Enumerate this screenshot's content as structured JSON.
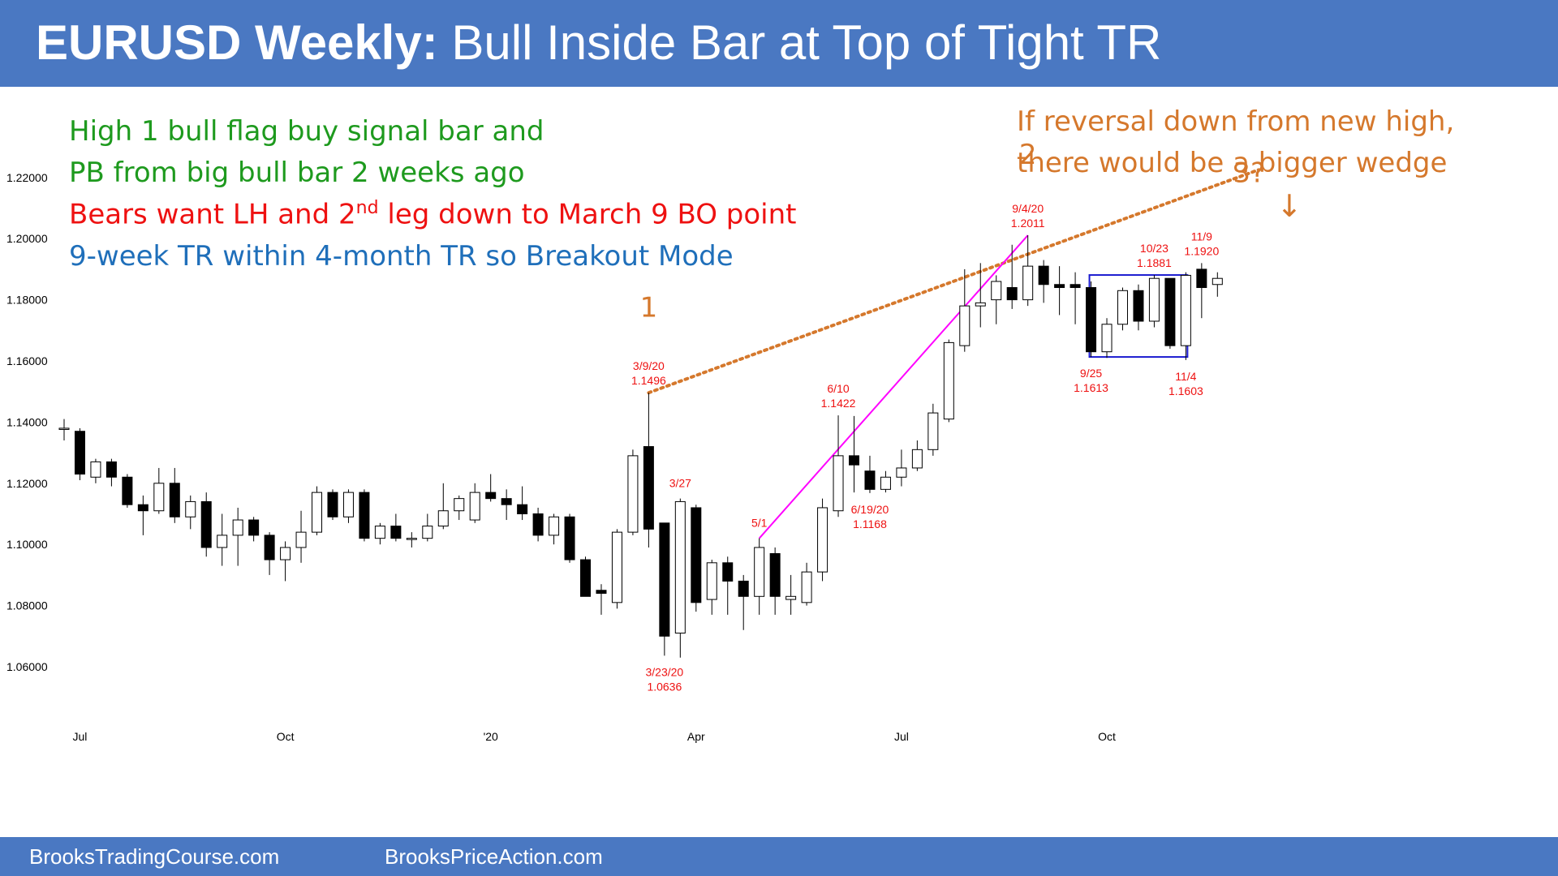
{
  "header": {
    "title_bold": "EURUSD Weekly:",
    "title_rest": " Bull Inside Bar at Top of Tight TR"
  },
  "footer": {
    "left": "BrooksTradingCourse.com",
    "right": "BrooksPriceAction.com"
  },
  "notes": {
    "line1": "High 1 bull flag buy signal bar and",
    "line2": "PB from big bull bar 2 weeks ago",
    "line3_a": "Bears want LH and 2",
    "line3_sup": "nd",
    "line3_b": " leg down to March 9 BO point",
    "line4": "9-week TR within 4-month TR so Breakout Mode",
    "reversal1": "If reversal down from new high,",
    "reversal2": "there would be a bigger wedge",
    "arrow": "↓"
  },
  "colors": {
    "header": "#4a78c2",
    "green": "#1e9a1e",
    "red": "#ee1111",
    "blue": "#1f6fba",
    "orange": "#d5782c",
    "magenta": "#ff00ff",
    "box": "#1a1ad0"
  },
  "chart_data": {
    "type": "candlestick",
    "ylim": [
      1.05,
      1.23
    ],
    "yticks": [
      1.06,
      1.08,
      1.1,
      1.12,
      1.14,
      1.16,
      1.18,
      1.2,
      1.22
    ],
    "ytick_labels": [
      "1.06000",
      "1.08000",
      "1.10000",
      "1.12000",
      "1.14000",
      "1.16000",
      "1.18000",
      "1.20000",
      "1.22000"
    ],
    "xticks": [
      {
        "index": 1,
        "label": "Jul"
      },
      {
        "index": 14,
        "label": "Oct"
      },
      {
        "index": 27,
        "label": "'20"
      },
      {
        "index": 40,
        "label": "Apr"
      },
      {
        "index": 53,
        "label": "Jul"
      },
      {
        "index": 66,
        "label": "Oct"
      }
    ],
    "candles": [
      {
        "o": 1.138,
        "h": 1.141,
        "l": 1.134,
        "c": 1.138
      },
      {
        "o": 1.137,
        "h": 1.138,
        "l": 1.121,
        "c": 1.123
      },
      {
        "o": 1.122,
        "h": 1.128,
        "l": 1.12,
        "c": 1.127
      },
      {
        "o": 1.127,
        "h": 1.128,
        "l": 1.119,
        "c": 1.122
      },
      {
        "o": 1.122,
        "h": 1.123,
        "l": 1.112,
        "c": 1.113
      },
      {
        "o": 1.113,
        "h": 1.116,
        "l": 1.103,
        "c": 1.111
      },
      {
        "o": 1.111,
        "h": 1.125,
        "l": 1.11,
        "c": 1.12
      },
      {
        "o": 1.12,
        "h": 1.125,
        "l": 1.107,
        "c": 1.109
      },
      {
        "o": 1.109,
        "h": 1.116,
        "l": 1.105,
        "c": 1.114
      },
      {
        "o": 1.114,
        "h": 1.117,
        "l": 1.096,
        "c": 1.099
      },
      {
        "o": 1.099,
        "h": 1.11,
        "l": 1.093,
        "c": 1.103
      },
      {
        "o": 1.103,
        "h": 1.112,
        "l": 1.093,
        "c": 1.108
      },
      {
        "o": 1.108,
        "h": 1.109,
        "l": 1.101,
        "c": 1.103
      },
      {
        "o": 1.103,
        "h": 1.104,
        "l": 1.09,
        "c": 1.095
      },
      {
        "o": 1.095,
        "h": 1.101,
        "l": 1.088,
        "c": 1.099
      },
      {
        "o": 1.099,
        "h": 1.111,
        "l": 1.094,
        "c": 1.104
      },
      {
        "o": 1.104,
        "h": 1.119,
        "l": 1.103,
        "c": 1.117
      },
      {
        "o": 1.117,
        "h": 1.118,
        "l": 1.108,
        "c": 1.109
      },
      {
        "o": 1.109,
        "h": 1.118,
        "l": 1.107,
        "c": 1.117
      },
      {
        "o": 1.117,
        "h": 1.118,
        "l": 1.101,
        "c": 1.102
      },
      {
        "o": 1.102,
        "h": 1.107,
        "l": 1.1,
        "c": 1.106
      },
      {
        "o": 1.106,
        "h": 1.11,
        "l": 1.101,
        "c": 1.102
      },
      {
        "o": 1.102,
        "h": 1.104,
        "l": 1.099,
        "c": 1.102
      },
      {
        "o": 1.102,
        "h": 1.11,
        "l": 1.101,
        "c": 1.106
      },
      {
        "o": 1.106,
        "h": 1.12,
        "l": 1.105,
        "c": 1.111
      },
      {
        "o": 1.111,
        "h": 1.116,
        "l": 1.108,
        "c": 1.115
      },
      {
        "o": 1.108,
        "h": 1.12,
        "l": 1.107,
        "c": 1.117
      },
      {
        "o": 1.117,
        "h": 1.123,
        "l": 1.114,
        "c": 1.115
      },
      {
        "o": 1.115,
        "h": 1.118,
        "l": 1.108,
        "c": 1.113
      },
      {
        "o": 1.113,
        "h": 1.119,
        "l": 1.108,
        "c": 1.11
      },
      {
        "o": 1.11,
        "h": 1.112,
        "l": 1.101,
        "c": 1.103
      },
      {
        "o": 1.103,
        "h": 1.11,
        "l": 1.1,
        "c": 1.109
      },
      {
        "o": 1.109,
        "h": 1.11,
        "l": 1.094,
        "c": 1.095
      },
      {
        "o": 1.095,
        "h": 1.096,
        "l": 1.083,
        "c": 1.083
      },
      {
        "o": 1.085,
        "h": 1.087,
        "l": 1.077,
        "c": 1.084
      },
      {
        "o": 1.081,
        "h": 1.105,
        "l": 1.079,
        "c": 1.104
      },
      {
        "o": 1.104,
        "h": 1.131,
        "l": 1.103,
        "c": 1.129
      },
      {
        "o": 1.132,
        "h": 1.1496,
        "l": 1.099,
        "c": 1.105
      },
      {
        "o": 1.107,
        "h": 1.107,
        "l": 1.0636,
        "c": 1.07
      },
      {
        "o": 1.071,
        "h": 1.115,
        "l": 1.063,
        "c": 1.114
      },
      {
        "o": 1.112,
        "h": 1.113,
        "l": 1.078,
        "c": 1.081
      },
      {
        "o": 1.082,
        "h": 1.095,
        "l": 1.077,
        "c": 1.094
      },
      {
        "o": 1.094,
        "h": 1.096,
        "l": 1.077,
        "c": 1.088
      },
      {
        "o": 1.088,
        "h": 1.09,
        "l": 1.072,
        "c": 1.083
      },
      {
        "o": 1.083,
        "h": 1.102,
        "l": 1.077,
        "c": 1.099
      },
      {
        "o": 1.097,
        "h": 1.099,
        "l": 1.077,
        "c": 1.083
      },
      {
        "o": 1.082,
        "h": 1.09,
        "l": 1.077,
        "c": 1.083
      },
      {
        "o": 1.081,
        "h": 1.094,
        "l": 1.08,
        "c": 1.091
      },
      {
        "o": 1.091,
        "h": 1.115,
        "l": 1.088,
        "c": 1.112
      },
      {
        "o": 1.111,
        "h": 1.1422,
        "l": 1.109,
        "c": 1.129
      },
      {
        "o": 1.129,
        "h": 1.142,
        "l": 1.117,
        "c": 1.126
      },
      {
        "o": 1.124,
        "h": 1.129,
        "l": 1.1168,
        "c": 1.118
      },
      {
        "o": 1.118,
        "h": 1.124,
        "l": 1.117,
        "c": 1.122
      },
      {
        "o": 1.122,
        "h": 1.131,
        "l": 1.119,
        "c": 1.125
      },
      {
        "o": 1.125,
        "h": 1.134,
        "l": 1.124,
        "c": 1.131
      },
      {
        "o": 1.131,
        "h": 1.146,
        "l": 1.129,
        "c": 1.143
      },
      {
        "o": 1.141,
        "h": 1.167,
        "l": 1.14,
        "c": 1.166
      },
      {
        "o": 1.165,
        "h": 1.19,
        "l": 1.163,
        "c": 1.178
      },
      {
        "o": 1.178,
        "h": 1.192,
        "l": 1.171,
        "c": 1.179
      },
      {
        "o": 1.18,
        "h": 1.188,
        "l": 1.172,
        "c": 1.186
      },
      {
        "o": 1.184,
        "h": 1.198,
        "l": 1.177,
        "c": 1.18
      },
      {
        "o": 1.18,
        "h": 1.2011,
        "l": 1.178,
        "c": 1.191
      },
      {
        "o": 1.191,
        "h": 1.193,
        "l": 1.179,
        "c": 1.185
      },
      {
        "o": 1.185,
        "h": 1.191,
        "l": 1.175,
        "c": 1.184
      },
      {
        "o": 1.185,
        "h": 1.189,
        "l": 1.172,
        "c": 1.184
      },
      {
        "o": 1.184,
        "h": 1.186,
        "l": 1.1613,
        "c": 1.163
      },
      {
        "o": 1.163,
        "h": 1.174,
        "l": 1.161,
        "c": 1.172
      },
      {
        "o": 1.172,
        "h": 1.184,
        "l": 1.17,
        "c": 1.183
      },
      {
        "o": 1.183,
        "h": 1.185,
        "l": 1.17,
        "c": 1.173
      },
      {
        "o": 1.173,
        "h": 1.1881,
        "l": 1.171,
        "c": 1.187
      },
      {
        "o": 1.187,
        "h": 1.187,
        "l": 1.164,
        "c": 1.165
      },
      {
        "o": 1.165,
        "h": 1.189,
        "l": 1.1603,
        "c": 1.188
      },
      {
        "o": 1.19,
        "h": 1.192,
        "l": 1.174,
        "c": 1.184
      },
      {
        "o": 1.185,
        "h": 1.189,
        "l": 1.181,
        "c": 1.187
      }
    ],
    "annotations": [
      {
        "text": "3/9/20",
        "text2": "1.1496",
        "index": 37,
        "price": 1.1496,
        "pos": "above"
      },
      {
        "text": "3/23/20",
        "text2": "1.0636",
        "index": 38,
        "price": 1.0636,
        "pos": "below"
      },
      {
        "text": "3/27",
        "index": 39,
        "price": 1.115,
        "pos": "above"
      },
      {
        "text": "5/1",
        "index": 44,
        "price": 1.102,
        "pos": "above"
      },
      {
        "text": "6/10",
        "text2": "1.1422",
        "index": 49,
        "price": 1.1422,
        "pos": "above"
      },
      {
        "text": "6/19/20",
        "text2": "1.1168",
        "index": 51,
        "price": 1.1168,
        "pos": "below"
      },
      {
        "text": "9/4/20",
        "text2": "1.2011",
        "index": 61,
        "price": 1.2011,
        "pos": "above"
      },
      {
        "text": "9/25",
        "text2": "1.1613",
        "index": 65,
        "price": 1.1613,
        "pos": "below"
      },
      {
        "text": "10/23",
        "text2": "1.1881",
        "index": 69,
        "price": 1.1881,
        "pos": "above"
      },
      {
        "text": "11/4",
        "text2": "1.1603",
        "index": 71,
        "price": 1.1603,
        "pos": "below"
      },
      {
        "text": "11/9",
        "text2": "1.1920",
        "index": 72,
        "price": 1.192,
        "pos": "above"
      }
    ],
    "labels": [
      {
        "text": "1",
        "index": 37,
        "price": 1.1745
      },
      {
        "text": "2",
        "index": 61,
        "price": 1.2245
      },
      {
        "text": "3?",
        "index": 75,
        "price": 1.2185
      }
    ],
    "wedge_line": {
      "from": {
        "index": 37,
        "price": 1.1496
      },
      "to": {
        "index": 75.6,
        "price": 1.2225
      }
    },
    "rally_line": {
      "from": {
        "index": 44,
        "price": 1.102
      },
      "to": {
        "index": 61,
        "price": 1.2011
      }
    },
    "range_box": {
      "from_index": 65,
      "to_index": 71,
      "high": 1.1881,
      "low": 1.1613
    }
  }
}
